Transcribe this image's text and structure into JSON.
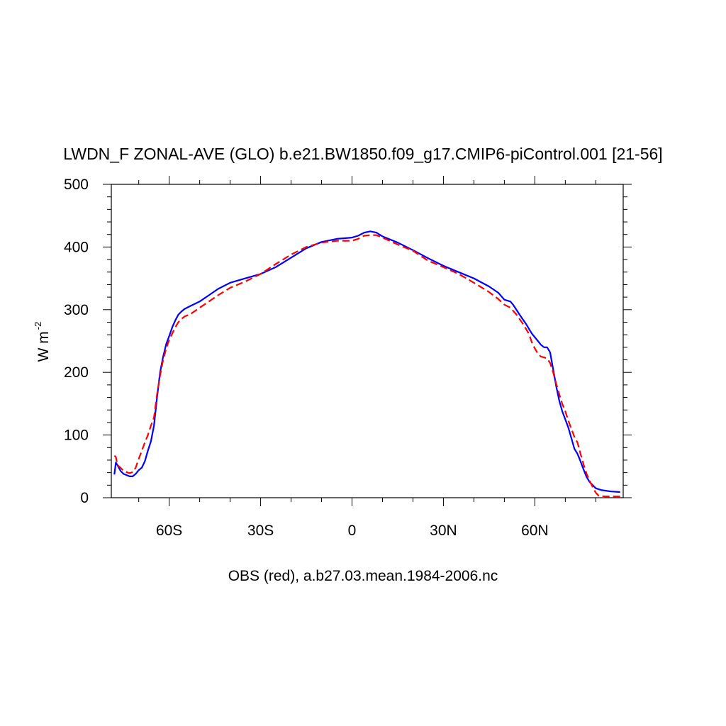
{
  "chart_data": {
    "type": "line",
    "title": "LWDN_F ZONAL-AVE (GLO) b.e21.BW1850.f09_g17.CMIP6-piControl.001 [21-56]",
    "xlabel": "OBS (red), a.b27.03.mean.1984-2006.nc",
    "ylabel": "W m",
    "ylabel_superscript": "-2",
    "xlim": [
      -79,
      89
    ],
    "ylim": [
      0,
      500
    ],
    "x_ticks": [
      {
        "value": -60,
        "label": "60S"
      },
      {
        "value": -30,
        "label": "30S"
      },
      {
        "value": 0,
        "label": "0"
      },
      {
        "value": 30,
        "label": "30N"
      },
      {
        "value": 60,
        "label": "60N"
      }
    ],
    "y_ticks": [
      {
        "value": 0,
        "label": "0"
      },
      {
        "value": 100,
        "label": "100"
      },
      {
        "value": 200,
        "label": "200"
      },
      {
        "value": 300,
        "label": "300"
      },
      {
        "value": 400,
        "label": "400"
      },
      {
        "value": 500,
        "label": "500"
      }
    ],
    "series": [
      {
        "color": "#0000ff",
        "dash": "solid",
        "points": [
          [
            -78,
            37
          ],
          [
            -77.5,
            56
          ],
          [
            -77,
            52
          ],
          [
            -76,
            43
          ],
          [
            -75,
            38
          ],
          [
            -73,
            34
          ],
          [
            -72,
            34
          ],
          [
            -71,
            38
          ],
          [
            -70,
            44
          ],
          [
            -69,
            48
          ],
          [
            -68,
            58
          ],
          [
            -67,
            75
          ],
          [
            -66,
            90
          ],
          [
            -65,
            115
          ],
          [
            -64,
            160
          ],
          [
            -63,
            200
          ],
          [
            -62,
            225
          ],
          [
            -61,
            245
          ],
          [
            -60,
            258
          ],
          [
            -59,
            272
          ],
          [
            -58,
            283
          ],
          [
            -57,
            292
          ],
          [
            -56,
            297
          ],
          [
            -55,
            301
          ],
          [
            -53,
            306
          ],
          [
            -50,
            313
          ],
          [
            -47,
            323
          ],
          [
            -44,
            333
          ],
          [
            -40,
            343
          ],
          [
            -35,
            350
          ],
          [
            -30,
            357
          ],
          [
            -25,
            368
          ],
          [
            -20,
            383
          ],
          [
            -15,
            398
          ],
          [
            -10,
            408
          ],
          [
            -5,
            413
          ],
          [
            0,
            415
          ],
          [
            2,
            418
          ],
          [
            4,
            423
          ],
          [
            6,
            425
          ],
          [
            8,
            423
          ],
          [
            10,
            417
          ],
          [
            15,
            407
          ],
          [
            20,
            395
          ],
          [
            25,
            382
          ],
          [
            30,
            370
          ],
          [
            35,
            360
          ],
          [
            40,
            350
          ],
          [
            45,
            337
          ],
          [
            48,
            327
          ],
          [
            50,
            316
          ],
          [
            52,
            313
          ],
          [
            53,
            307
          ],
          [
            55,
            292
          ],
          [
            57,
            278
          ],
          [
            59,
            262
          ],
          [
            61,
            250
          ],
          [
            62,
            244
          ],
          [
            63,
            240
          ],
          [
            64,
            240
          ],
          [
            65,
            232
          ],
          [
            66,
            205
          ],
          [
            67,
            178
          ],
          [
            68,
            155
          ],
          [
            69,
            138
          ],
          [
            70,
            125
          ],
          [
            71,
            112
          ],
          [
            72,
            95
          ],
          [
            73,
            78
          ],
          [
            74,
            70
          ],
          [
            75,
            58
          ],
          [
            76,
            45
          ],
          [
            77,
            33
          ],
          [
            78,
            25
          ],
          [
            79,
            20
          ],
          [
            80,
            15
          ],
          [
            82,
            12
          ],
          [
            85,
            10
          ],
          [
            88,
            9
          ]
        ]
      },
      {
        "color": "#ff0000",
        "dash": "dashed",
        "points": [
          [
            -78,
            67
          ],
          [
            -77.5,
            65
          ],
          [
            -77,
            52
          ],
          [
            -76,
            48
          ],
          [
            -75,
            43
          ],
          [
            -74,
            41
          ],
          [
            -73,
            39
          ],
          [
            -72,
            41
          ],
          [
            -71,
            48
          ],
          [
            -70,
            62
          ],
          [
            -69,
            75
          ],
          [
            -68,
            88
          ],
          [
            -67,
            100
          ],
          [
            -66,
            115
          ],
          [
            -65,
            128
          ],
          [
            -64,
            165
          ],
          [
            -63,
            195
          ],
          [
            -62,
            220
          ],
          [
            -61,
            238
          ],
          [
            -60,
            252
          ],
          [
            -59,
            262
          ],
          [
            -58,
            272
          ],
          [
            -57,
            280
          ],
          [
            -56,
            285
          ],
          [
            -55,
            289
          ],
          [
            -53,
            293
          ],
          [
            -50,
            303
          ],
          [
            -47,
            313
          ],
          [
            -44,
            323
          ],
          [
            -40,
            335
          ],
          [
            -35,
            345
          ],
          [
            -30,
            357
          ],
          [
            -25,
            373
          ],
          [
            -20,
            388
          ],
          [
            -15,
            400
          ],
          [
            -10,
            407
          ],
          [
            -5,
            410
          ],
          [
            0,
            410
          ],
          [
            2,
            413
          ],
          [
            4,
            418
          ],
          [
            6,
            419
          ],
          [
            8,
            419
          ],
          [
            10,
            415
          ],
          [
            15,
            404
          ],
          [
            20,
            394
          ],
          [
            25,
            378
          ],
          [
            30,
            368
          ],
          [
            35,
            357
          ],
          [
            40,
            343
          ],
          [
            45,
            328
          ],
          [
            48,
            317
          ],
          [
            50,
            308
          ],
          [
            52,
            303
          ],
          [
            54,
            292
          ],
          [
            56,
            278
          ],
          [
            58,
            262
          ],
          [
            59,
            248
          ],
          [
            60,
            238
          ],
          [
            61,
            230
          ],
          [
            62,
            225
          ],
          [
            63,
            224
          ],
          [
            64,
            222
          ],
          [
            65,
            215
          ],
          [
            66,
            200
          ],
          [
            67,
            182
          ],
          [
            68,
            165
          ],
          [
            69,
            150
          ],
          [
            70,
            138
          ],
          [
            71,
            123
          ],
          [
            72,
            110
          ],
          [
            73,
            97
          ],
          [
            74,
            88
          ],
          [
            75,
            70
          ],
          [
            76,
            53
          ],
          [
            77,
            38
          ],
          [
            78,
            27
          ],
          [
            79,
            17
          ],
          [
            80,
            8
          ],
          [
            81,
            3
          ],
          [
            83,
            2
          ],
          [
            88,
            2
          ]
        ]
      }
    ]
  }
}
